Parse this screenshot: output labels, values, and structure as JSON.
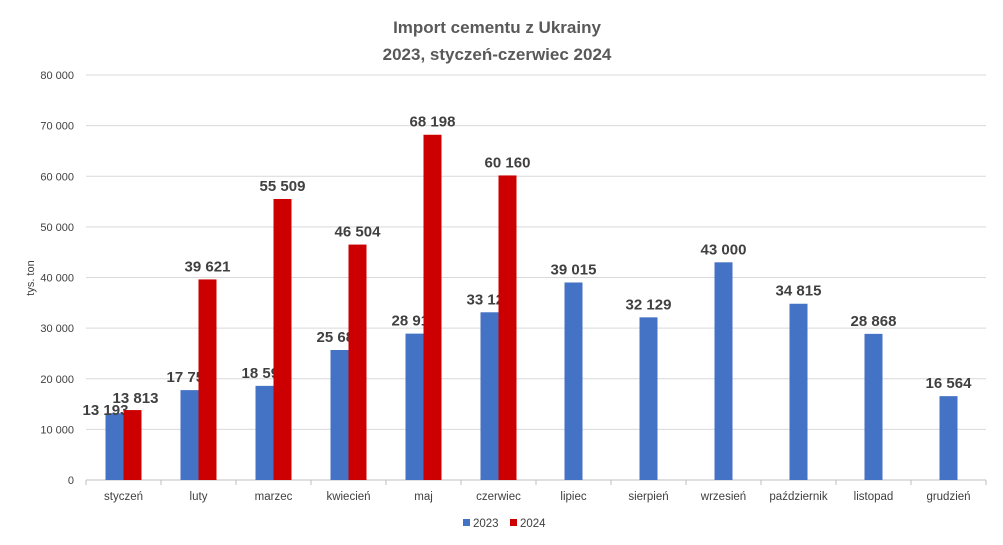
{
  "chart_data": {
    "type": "bar",
    "title": [
      "Import cementu z Ukrainy",
      "2023, styczeń-czerwiec 2024"
    ],
    "ylabel": "tys. ton",
    "xlabel": "",
    "ylim": [
      0,
      80000
    ],
    "yticks": [
      "0",
      "10 000",
      "20 000",
      "30 000",
      "40 000",
      "50 000",
      "60 000",
      "70 000",
      "80 000"
    ],
    "grid": true,
    "legend_placement": "bottom",
    "categories": [
      "styczeń",
      "luty",
      "marzec",
      "kwiecień",
      "maj",
      "czerwiec",
      "lipiec",
      "sierpień",
      "wrzesień",
      "październik",
      "listopad",
      "grudzień"
    ],
    "series": [
      {
        "name": "2023",
        "color": "#4472C4",
        "values": [
          13193,
          17753,
          18595,
          25680,
          28913,
          33128,
          39015,
          32129,
          43000,
          34815,
          28868,
          16564
        ],
        "labels": [
          "13 193",
          "17 753",
          "18 595",
          "25 680",
          "28 913",
          "33 128",
          "39 015",
          "32 129",
          "43 000",
          "34 815",
          "28 868",
          "16 564"
        ]
      },
      {
        "name": "2024",
        "color": "#CC0000",
        "values": [
          13813,
          39621,
          55509,
          46504,
          68198,
          60160,
          null,
          null,
          null,
          null,
          null,
          null
        ],
        "labels": [
          "13 813",
          "39 621",
          "55 509",
          "46 504",
          "68 198",
          "60 160"
        ]
      }
    ]
  }
}
